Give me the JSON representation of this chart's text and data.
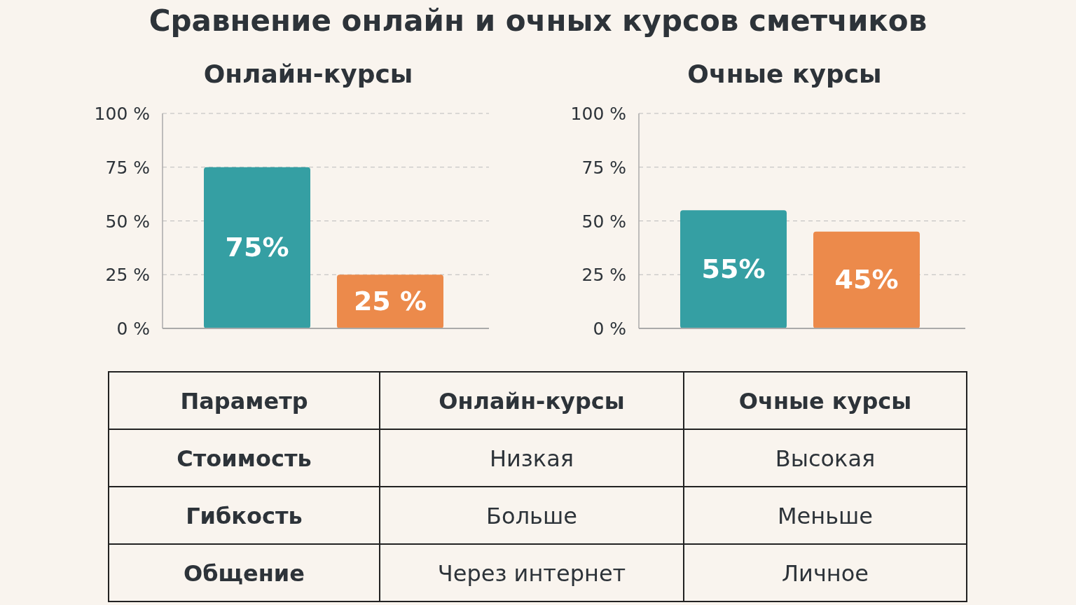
{
  "chart_data": [
    {
      "type": "bar",
      "title": "Онлайн-курсы",
      "categories": [
        null,
        null
      ],
      "values": [
        75,
        25
      ],
      "colors": [
        "#359fa3",
        "#ec8a4b"
      ],
      "data_labels": true,
      "value_labels": [
        "75%",
        "25 %"
      ],
      "ylim": [
        0,
        100
      ],
      "yticks": [
        {
          "value": 0,
          "label": "0 %"
        },
        {
          "value": 25,
          "label": "25 %"
        },
        {
          "value": 50,
          "label": "50 %"
        },
        {
          "value": 75,
          "label": "75 %"
        },
        {
          "value": 100,
          "label": "100 %"
        }
      ],
      "grid": "y"
    },
    {
      "type": "bar",
      "title": "Очные курсы",
      "categories": [
        null,
        null
      ],
      "values": [
        55,
        45
      ],
      "colors": [
        "#359fa3",
        "#ec8a4b"
      ],
      "data_labels": true,
      "value_labels": [
        "55%",
        "45%"
      ],
      "ylim": [
        0,
        100
      ],
      "yticks": [
        {
          "value": 0,
          "label": "0 %"
        },
        {
          "value": 25,
          "label": "25 %"
        },
        {
          "value": 50,
          "label": "50 %"
        },
        {
          "value": 75,
          "label": "75 %"
        },
        {
          "value": 100,
          "label": "100 %"
        }
      ],
      "grid": "y"
    },
    {
      "type": "other",
      "title": "Сравнение онлайн и очных курсов сметчиков",
      "categories": [
        "Параметр",
        "Онлайн-курсы",
        "Очные курсы"
      ],
      "cell_labels": [
        [
          "Стоимость",
          "Низкая",
          "Высокая"
        ],
        [
          "Гибкость",
          "Больше",
          "Меньше"
        ],
        [
          "Общение",
          "Через интернет",
          "Личное"
        ]
      ]
    }
  ]
}
